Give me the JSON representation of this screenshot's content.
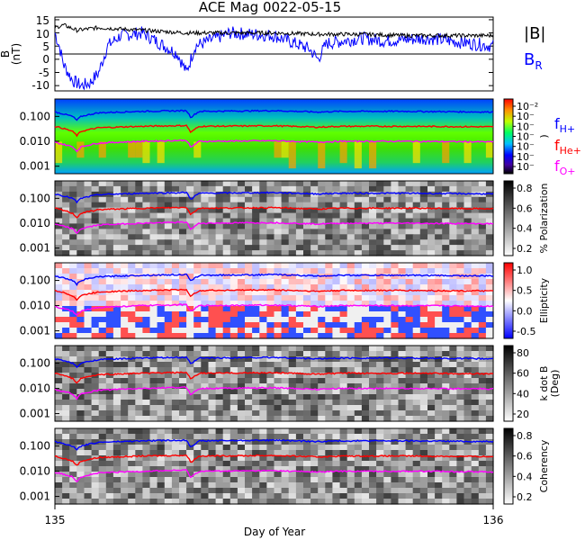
{
  "title": "ACE Mag 0022-05-15",
  "xlabel": "Day of Year",
  "x_ticks": [
    "135",
    "136"
  ],
  "colors": {
    "B_total": "#000000",
    "B_R": "#0000ff",
    "f_H": "#0000ff",
    "f_He": "#ff0000",
    "f_O": "#ff00ff"
  },
  "mag_panel": {
    "ylabel": "B (nT)",
    "ylabel_line1": "B",
    "ylabel_line2": "(nT)",
    "yticks": [
      "15",
      "10",
      "5",
      "0",
      "-5",
      "-10"
    ],
    "legend_B": "|B|",
    "legend_BR": "B",
    "legend_BR_sub": "R"
  },
  "freq_ticks": [
    "0.100",
    "0.010",
    "0.001"
  ],
  "freq_labels": {
    "fH": "f",
    "fH_sub": "H+",
    "fHe": "f",
    "fHe_sub": "He+",
    "fO": "f",
    "fO_sub": "O+"
  },
  "spectrogram_panels": [
    {
      "name": "power",
      "colorbar_label": ")",
      "colorbar_ticks": [
        "10⁻²",
        "10⁻",
        "10⁻",
        "10⁻",
        "10⁻",
        "10⁻",
        "10⁻"
      ]
    },
    {
      "name": "polarization",
      "colorbar_label": "% Polarization",
      "colorbar_ticks": [
        "0.8",
        "0.6",
        "0.4",
        "0.2"
      ]
    },
    {
      "name": "ellipticity",
      "colorbar_label": "Ellipticity",
      "colorbar_ticks": [
        "1.0",
        "0.5",
        "0.0",
        "-0.5"
      ]
    },
    {
      "name": "kdotb",
      "colorbar_label": "k dot B",
      "colorbar_label2": "(Deg)",
      "colorbar_ticks": [
        "80",
        "60",
        "40",
        "20"
      ]
    },
    {
      "name": "coherency",
      "colorbar_label": "Coherency",
      "colorbar_ticks": [
        "0.8",
        "0.6",
        "0.4",
        "0.2"
      ]
    }
  ],
  "chart_data": {
    "type": "line",
    "xlim": [
      135,
      136
    ],
    "mag_ylim": [
      -12,
      16
    ],
    "series_B_total": [
      [
        135.0,
        12
      ],
      [
        135.02,
        13
      ],
      [
        135.05,
        11
      ],
      [
        135.1,
        12
      ],
      [
        135.15,
        11.5
      ],
      [
        135.2,
        11
      ],
      [
        135.25,
        10.5
      ],
      [
        135.3,
        10
      ],
      [
        135.4,
        10
      ],
      [
        135.5,
        10
      ],
      [
        135.6,
        9.5
      ],
      [
        135.7,
        9.5
      ],
      [
        135.8,
        9
      ],
      [
        135.9,
        9
      ],
      [
        136.0,
        9
      ]
    ],
    "series_B_R": [
      [
        135.0,
        10
      ],
      [
        135.01,
        5
      ],
      [
        135.02,
        -2
      ],
      [
        135.04,
        -8
      ],
      [
        135.06,
        -10
      ],
      [
        135.08,
        -9
      ],
      [
        135.1,
        -5
      ],
      [
        135.12,
        5
      ],
      [
        135.15,
        9
      ],
      [
        135.2,
        10
      ],
      [
        135.28,
        2
      ],
      [
        135.3,
        -5
      ],
      [
        135.32,
        5
      ],
      [
        135.4,
        10
      ],
      [
        135.5,
        9
      ],
      [
        135.58,
        4
      ],
      [
        135.6,
        0
      ],
      [
        135.62,
        6
      ],
      [
        135.7,
        8
      ],
      [
        135.75,
        7
      ],
      [
        135.85,
        8
      ],
      [
        135.95,
        6
      ],
      [
        136.0,
        5
      ]
    ],
    "freq_ylim": [
      0.0005,
      0.5
    ],
    "series_fH": [
      [
        135.0,
        0.15
      ],
      [
        135.04,
        0.1
      ],
      [
        135.05,
        0.07
      ],
      [
        135.06,
        0.1
      ],
      [
        135.1,
        0.14
      ],
      [
        135.2,
        0.16
      ],
      [
        135.3,
        0.17
      ],
      [
        135.31,
        0.09
      ],
      [
        135.33,
        0.16
      ],
      [
        135.5,
        0.17
      ],
      [
        135.6,
        0.15
      ],
      [
        135.65,
        0.16
      ],
      [
        135.8,
        0.16
      ],
      [
        136.0,
        0.15
      ]
    ],
    "series_fHe": [
      [
        135.0,
        0.04
      ],
      [
        135.04,
        0.025
      ],
      [
        135.05,
        0.017
      ],
      [
        135.06,
        0.025
      ],
      [
        135.1,
        0.035
      ],
      [
        135.2,
        0.04
      ],
      [
        135.3,
        0.043
      ],
      [
        135.31,
        0.022
      ],
      [
        135.33,
        0.04
      ],
      [
        135.5,
        0.042
      ],
      [
        135.6,
        0.037
      ],
      [
        135.65,
        0.04
      ],
      [
        135.8,
        0.04
      ],
      [
        136.0,
        0.038
      ]
    ],
    "series_fO": [
      [
        135.0,
        0.009
      ],
      [
        135.04,
        0.006
      ],
      [
        135.05,
        0.004
      ],
      [
        135.06,
        0.006
      ],
      [
        135.1,
        0.0085
      ],
      [
        135.2,
        0.01
      ],
      [
        135.3,
        0.011
      ],
      [
        135.31,
        0.0055
      ],
      [
        135.33,
        0.01
      ],
      [
        135.5,
        0.0105
      ],
      [
        135.6,
        0.0093
      ],
      [
        135.65,
        0.01
      ],
      [
        135.8,
        0.01
      ],
      [
        136.0,
        0.0095
      ]
    ]
  }
}
